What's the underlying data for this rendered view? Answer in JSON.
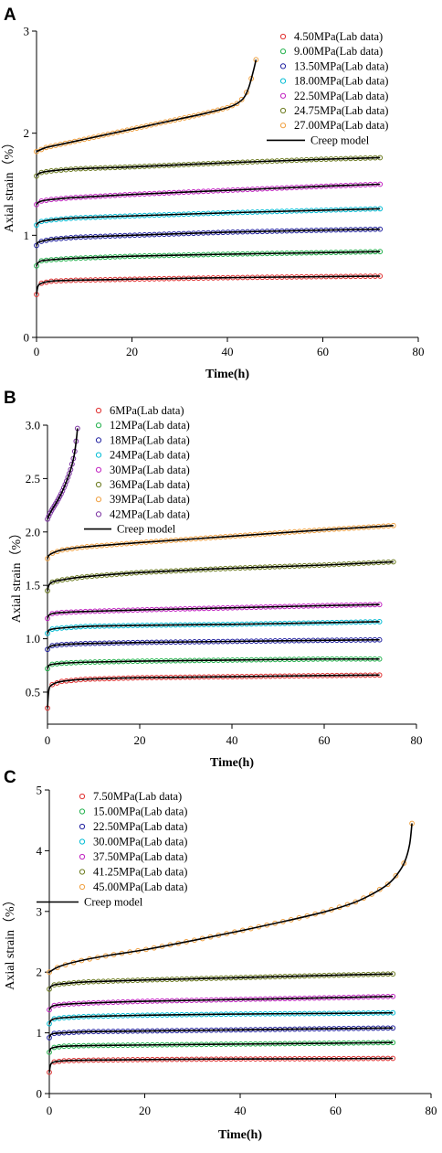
{
  "chart_data": [
    {
      "type": "scatter",
      "panel": "A",
      "xlabel": "Time(h)",
      "ylabel": "Axial strain（%）",
      "xlim": [
        0,
        80
      ],
      "ylim": [
        0,
        3
      ],
      "xticks": [
        "0",
        "20",
        "40",
        "60",
        "80"
      ],
      "yticks": [
        "0",
        "1",
        "2",
        "3"
      ],
      "model_label": "Creep model",
      "series": [
        {
          "name": "4.50MPa(Lab data)",
          "color": "#e03030",
          "x_end": 72,
          "points": [
            [
              0,
              0.42
            ],
            [
              0.3,
              0.5
            ],
            [
              1,
              0.53
            ],
            [
              3,
              0.55
            ],
            [
              8,
              0.56
            ],
            [
              20,
              0.57
            ],
            [
              40,
              0.585
            ],
            [
              60,
              0.595
            ],
            [
              72,
              0.6
            ]
          ]
        },
        {
          "name": "9.00MPa(Lab data)",
          "color": "#22b14c",
          "x_end": 72,
          "points": [
            [
              0,
              0.7
            ],
            [
              0.3,
              0.73
            ],
            [
              1,
              0.75
            ],
            [
              3,
              0.76
            ],
            [
              8,
              0.775
            ],
            [
              20,
              0.795
            ],
            [
              40,
              0.815
            ],
            [
              60,
              0.83
            ],
            [
              72,
              0.84
            ]
          ]
        },
        {
          "name": "13.50MPa(Lab data)",
          "color": "#2020a0",
          "x_end": 72,
          "points": [
            [
              0,
              0.9
            ],
            [
              0.3,
              0.93
            ],
            [
              1,
              0.94
            ],
            [
              3,
              0.96
            ],
            [
              8,
              0.98
            ],
            [
              20,
              1.0
            ],
            [
              40,
              1.03
            ],
            [
              60,
              1.05
            ],
            [
              72,
              1.06
            ]
          ]
        },
        {
          "name": "18.00MPa(Lab data)",
          "color": "#00bcd4",
          "x_end": 72,
          "points": [
            [
              0,
              1.1
            ],
            [
              0.3,
              1.12
            ],
            [
              1,
              1.135
            ],
            [
              3,
              1.15
            ],
            [
              8,
              1.17
            ],
            [
              20,
              1.19
            ],
            [
              40,
              1.22
            ],
            [
              60,
              1.245
            ],
            [
              72,
              1.26
            ]
          ]
        },
        {
          "name": "22.50MPa(Lab data)",
          "color": "#c020c0",
          "x_end": 72,
          "points": [
            [
              0,
              1.3
            ],
            [
              0.3,
              1.32
            ],
            [
              1,
              1.335
            ],
            [
              3,
              1.35
            ],
            [
              8,
              1.37
            ],
            [
              20,
              1.4
            ],
            [
              40,
              1.44
            ],
            [
              60,
              1.48
            ],
            [
              72,
              1.5
            ]
          ]
        },
        {
          "name": "24.75MPa(Lab data)",
          "color": "#6b7a1e",
          "x_end": 72,
          "points": [
            [
              0,
              1.58
            ],
            [
              0.3,
              1.6
            ],
            [
              1,
              1.615
            ],
            [
              3,
              1.63
            ],
            [
              8,
              1.65
            ],
            [
              20,
              1.67
            ],
            [
              40,
              1.71
            ],
            [
              60,
              1.745
            ],
            [
              72,
              1.76
            ]
          ]
        },
        {
          "name": "27.00MPa(Lab data)",
          "color": "#f0a040",
          "x_end": 46,
          "points": [
            [
              0,
              1.82
            ],
            [
              2,
              1.86
            ],
            [
              5,
              1.89
            ],
            [
              10,
              1.94
            ],
            [
              15,
              1.99
            ],
            [
              20,
              2.04
            ],
            [
              25,
              2.09
            ],
            [
              30,
              2.14
            ],
            [
              35,
              2.19
            ],
            [
              40,
              2.25
            ],
            [
              42,
              2.29
            ],
            [
              43.5,
              2.35
            ],
            [
              44.5,
              2.45
            ],
            [
              45.5,
              2.62
            ],
            [
              46,
              2.72
            ]
          ]
        }
      ],
      "legend_position": "top-right"
    },
    {
      "type": "scatter",
      "panel": "B",
      "xlabel": "Time(h)",
      "ylabel": "Axial strain（%）",
      "xlim": [
        0,
        80
      ],
      "ylim": [
        0.2,
        3.0
      ],
      "xticks": [
        "0",
        "20",
        "40",
        "60",
        "80"
      ],
      "yticks": [
        "0.5",
        "1.0",
        "1.5",
        "2.0",
        "2.5",
        "3.0"
      ],
      "model_label": "Creep model",
      "series": [
        {
          "name": "6MPa(Lab data)",
          "color": "#e03030",
          "x_end": 72,
          "points": [
            [
              0,
              0.35
            ],
            [
              0.3,
              0.52
            ],
            [
              1,
              0.57
            ],
            [
              3,
              0.6
            ],
            [
              8,
              0.62
            ],
            [
              20,
              0.635
            ],
            [
              40,
              0.645
            ],
            [
              60,
              0.655
            ],
            [
              72,
              0.66
            ]
          ]
        },
        {
          "name": "12MPa(Lab data)",
          "color": "#22b14c",
          "x_end": 72,
          "points": [
            [
              0,
              0.72
            ],
            [
              0.3,
              0.75
            ],
            [
              1,
              0.76
            ],
            [
              3,
              0.77
            ],
            [
              8,
              0.78
            ],
            [
              20,
              0.79
            ],
            [
              40,
              0.8
            ],
            [
              60,
              0.81
            ],
            [
              72,
              0.81
            ]
          ]
        },
        {
          "name": "18MPa(Lab data)",
          "color": "#2020a0",
          "x_end": 72,
          "points": [
            [
              0,
              0.9
            ],
            [
              0.3,
              0.92
            ],
            [
              1,
              0.935
            ],
            [
              3,
              0.945
            ],
            [
              8,
              0.955
            ],
            [
              20,
              0.965
            ],
            [
              40,
              0.975
            ],
            [
              60,
              0.985
            ],
            [
              72,
              0.99
            ]
          ]
        },
        {
          "name": "24MPa(Lab data)",
          "color": "#00bcd4",
          "x_end": 72,
          "points": [
            [
              0,
              1.05
            ],
            [
              0.3,
              1.08
            ],
            [
              1,
              1.09
            ],
            [
              3,
              1.1
            ],
            [
              8,
              1.115
            ],
            [
              20,
              1.125
            ],
            [
              40,
              1.135
            ],
            [
              60,
              1.15
            ],
            [
              72,
              1.16
            ]
          ]
        },
        {
          "name": "30MPa(Lab data)",
          "color": "#c020c0",
          "x_end": 72,
          "points": [
            [
              0,
              1.19
            ],
            [
              0.3,
              1.22
            ],
            [
              1,
              1.235
            ],
            [
              3,
              1.245
            ],
            [
              8,
              1.255
            ],
            [
              20,
              1.27
            ],
            [
              40,
              1.29
            ],
            [
              60,
              1.31
            ],
            [
              72,
              1.32
            ]
          ]
        },
        {
          "name": "36MPa(Lab data)",
          "color": "#6b7a1e",
          "x_end": 75,
          "points": [
            [
              0,
              1.45
            ],
            [
              0.3,
              1.5
            ],
            [
              1,
              1.53
            ],
            [
              3,
              1.55
            ],
            [
              8,
              1.58
            ],
            [
              20,
              1.62
            ],
            [
              40,
              1.66
            ],
            [
              60,
              1.69
            ],
            [
              75,
              1.72
            ]
          ]
        },
        {
          "name": "39MPa(Lab data)",
          "color": "#f0a040",
          "x_end": 75,
          "points": [
            [
              0,
              1.75
            ],
            [
              0.3,
              1.78
            ],
            [
              1,
              1.8
            ],
            [
              3,
              1.83
            ],
            [
              8,
              1.86
            ],
            [
              20,
              1.9
            ],
            [
              40,
              1.96
            ],
            [
              60,
              2.02
            ],
            [
              75,
              2.06
            ]
          ]
        },
        {
          "name": "42MPa(Lab data)",
          "color": "#7a30a0",
          "x_end": 6.5,
          "points": [
            [
              0,
              2.12
            ],
            [
              0.5,
              2.17
            ],
            [
              1,
              2.21
            ],
            [
              2,
              2.28
            ],
            [
              3,
              2.36
            ],
            [
              4,
              2.46
            ],
            [
              5,
              2.58
            ],
            [
              5.8,
              2.72
            ],
            [
              6.3,
              2.88
            ],
            [
              6.5,
              2.97
            ]
          ]
        }
      ],
      "legend_position": "top-left"
    },
    {
      "type": "scatter",
      "panel": "C",
      "xlabel": "Time(h)",
      "ylabel": "Axial strain（%）",
      "xlim": [
        0,
        80
      ],
      "ylim": [
        0,
        5
      ],
      "xticks": [
        "0",
        "20",
        "40",
        "60",
        "80"
      ],
      "yticks": [
        "0",
        "1",
        "2",
        "3",
        "4",
        "5"
      ],
      "model_label": "Creep model",
      "series": [
        {
          "name": "7.50MPa(Lab data)",
          "color": "#e03030",
          "x_end": 72,
          "points": [
            [
              0,
              0.35
            ],
            [
              0.3,
              0.48
            ],
            [
              1,
              0.52
            ],
            [
              3,
              0.54
            ],
            [
              8,
              0.55
            ],
            [
              20,
              0.56
            ],
            [
              40,
              0.57
            ],
            [
              60,
              0.575
            ],
            [
              72,
              0.58
            ]
          ]
        },
        {
          "name": "15.00MPa(Lab data)",
          "color": "#22b14c",
          "x_end": 72,
          "points": [
            [
              0,
              0.68
            ],
            [
              0.3,
              0.74
            ],
            [
              1,
              0.76
            ],
            [
              3,
              0.78
            ],
            [
              8,
              0.79
            ],
            [
              20,
              0.8
            ],
            [
              40,
              0.815
            ],
            [
              60,
              0.83
            ],
            [
              72,
              0.84
            ]
          ]
        },
        {
          "name": "22.50MPa(Lab data)",
          "color": "#2020a0",
          "x_end": 72,
          "points": [
            [
              0,
              0.92
            ],
            [
              0.3,
              0.97
            ],
            [
              1,
              0.99
            ],
            [
              3,
              1.0
            ],
            [
              8,
              1.02
            ],
            [
              20,
              1.03
            ],
            [
              40,
              1.05
            ],
            [
              60,
              1.07
            ],
            [
              72,
              1.08
            ]
          ]
        },
        {
          "name": "30.00MPa(Lab data)",
          "color": "#00bcd4",
          "x_end": 72,
          "points": [
            [
              0,
              1.15
            ],
            [
              0.3,
              1.2
            ],
            [
              1,
              1.23
            ],
            [
              3,
              1.25
            ],
            [
              8,
              1.27
            ],
            [
              20,
              1.29
            ],
            [
              40,
              1.31
            ],
            [
              60,
              1.32
            ],
            [
              72,
              1.33
            ]
          ]
        },
        {
          "name": "37.50MPa(Lab data)",
          "color": "#c020c0",
          "x_end": 72,
          "points": [
            [
              0,
              1.38
            ],
            [
              0.3,
              1.42
            ],
            [
              1,
              1.45
            ],
            [
              3,
              1.47
            ],
            [
              8,
              1.49
            ],
            [
              20,
              1.52
            ],
            [
              40,
              1.55
            ],
            [
              60,
              1.58
            ],
            [
              72,
              1.6
            ]
          ]
        },
        {
          "name": "41.25MPa(Lab data)",
          "color": "#6b7a1e",
          "x_end": 72,
          "points": [
            [
              0,
              1.72
            ],
            [
              0.3,
              1.76
            ],
            [
              1,
              1.79
            ],
            [
              3,
              1.81
            ],
            [
              8,
              1.84
            ],
            [
              20,
              1.87
            ],
            [
              40,
              1.91
            ],
            [
              60,
              1.95
            ],
            [
              72,
              1.97
            ]
          ]
        },
        {
          "name": "45.00MPa(Lab data)",
          "color": "#f0a040",
          "x_end": 76,
          "points": [
            [
              0,
              2.0
            ],
            [
              2,
              2.09
            ],
            [
              6,
              2.18
            ],
            [
              12,
              2.27
            ],
            [
              20,
              2.37
            ],
            [
              30,
              2.52
            ],
            [
              40,
              2.68
            ],
            [
              50,
              2.85
            ],
            [
              58,
              3.0
            ],
            [
              64,
              3.15
            ],
            [
              68,
              3.3
            ],
            [
              71,
              3.45
            ],
            [
              73,
              3.62
            ],
            [
              74.5,
              3.82
            ],
            [
              75.5,
              4.1
            ],
            [
              76,
              4.45
            ]
          ]
        }
      ],
      "legend_position": "top-left"
    }
  ]
}
